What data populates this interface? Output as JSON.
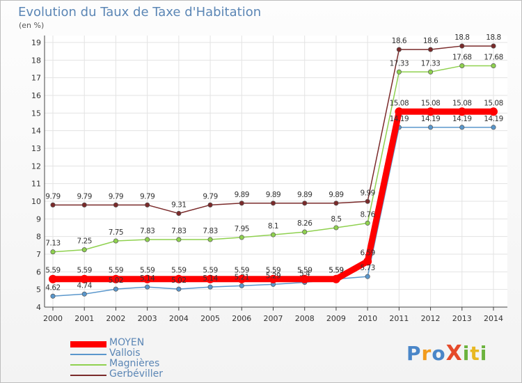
{
  "title": "Evolution du Taux de Taxe d'Habitation",
  "subtitle": "(en %)",
  "logo": {
    "text": "ProXiti",
    "letters": [
      "P",
      "r",
      "o",
      "X",
      "i",
      "t",
      "i"
    ],
    "colors": [
      "#4a86c8",
      "#f29b1d",
      "#4a86c8",
      "#e54a2a",
      "#6cb33e",
      "#e8b822",
      "#6cb33e"
    ]
  },
  "chart_data": {
    "type": "line",
    "x": [
      2000,
      2001,
      2002,
      2003,
      2004,
      2005,
      2006,
      2007,
      2008,
      2009,
      2010,
      2011,
      2012,
      2013,
      2014
    ],
    "ylim": [
      4,
      19
    ],
    "yticks": [
      4,
      5,
      6,
      7,
      8,
      9,
      10,
      11,
      12,
      13,
      14,
      15,
      16,
      17,
      18,
      19
    ],
    "grid": true,
    "legend_position": "bottom-left",
    "series": [
      {
        "name": "MOYEN",
        "color": "#ff0000",
        "values": [
          5.59,
          5.59,
          5.59,
          5.59,
          5.59,
          5.59,
          5.59,
          5.59,
          5.59,
          5.59,
          6.59,
          15.08,
          15.08,
          15.08,
          15.08
        ],
        "labels": [
          "5.59",
          "5.59",
          "5.59",
          "5.59",
          "5.59",
          "5.59",
          "5.59",
          "5.59",
          "5.59",
          "5.59",
          "6.59",
          "15.08",
          "15.08",
          "15.08",
          "15.08"
        ]
      },
      {
        "name": "Vallois",
        "color": "#5a97cc",
        "values": [
          4.62,
          4.74,
          5.02,
          5.14,
          5.02,
          5.14,
          5.21,
          5.29,
          5.4,
          5.59,
          5.73,
          14.19,
          14.19,
          14.19,
          14.19
        ],
        "labels": [
          "4.62",
          "4.74",
          "5.02",
          "5.14",
          "5.02",
          "5.14",
          "5.21",
          "5.29",
          "5.4",
          "5.59",
          "5.73",
          "14.19",
          "14.19",
          "14.19",
          "14.19"
        ]
      },
      {
        "name": "Magnières",
        "color": "#8fd14f",
        "values": [
          7.13,
          7.25,
          7.75,
          7.83,
          7.83,
          7.83,
          7.95,
          8.1,
          8.26,
          8.5,
          8.76,
          17.33,
          17.33,
          17.68,
          17.68
        ],
        "labels": [
          "7.13",
          "7.25",
          "7.75",
          "7.83",
          "7.83",
          "7.83",
          "7.95",
          "8.1",
          "8.26",
          "8.5",
          "8.76",
          "17.33",
          "17.33",
          "17.68",
          "17.68"
        ]
      },
      {
        "name": "Gerbéviller",
        "color": "#7a2a2a",
        "values": [
          9.79,
          9.79,
          9.79,
          9.79,
          9.31,
          9.79,
          9.89,
          9.89,
          9.89,
          9.89,
          9.99,
          18.6,
          18.6,
          18.8,
          18.8
        ],
        "labels": [
          "9.79",
          "9.79",
          "9.79",
          "9.79",
          "9.31",
          "9.79",
          "9.89",
          "9.89",
          "9.89",
          "9.89",
          "9.99",
          "18.6",
          "18.6",
          "18.8",
          "18.8"
        ]
      }
    ]
  }
}
